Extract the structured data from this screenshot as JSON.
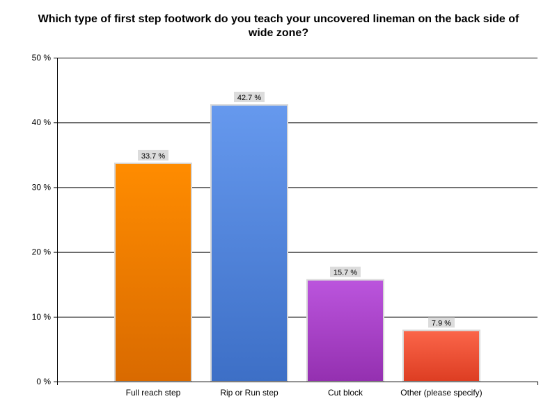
{
  "chart_data": {
    "type": "bar",
    "title": "Which type of first step footwork do you teach your uncovered lineman on the back side of wide zone?",
    "xlabel": "",
    "ylabel": "",
    "ylim": [
      0,
      50
    ],
    "y_ticks": [
      0,
      10,
      20,
      30,
      40,
      50
    ],
    "y_tick_labels": [
      "0 %",
      "10 %",
      "20 %",
      "30 %",
      "40 %",
      "50 %"
    ],
    "grid": true,
    "categories": [
      "Full reach step",
      "Rip or Run step",
      "Cut block",
      "Other (please specify)"
    ],
    "values": [
      33.7,
      42.7,
      15.7,
      7.9
    ],
    "data_labels": [
      "33.7 %",
      "42.7 %",
      "15.7 %",
      "7.9 %"
    ],
    "bar_colors": [
      {
        "top": "#ff8c00",
        "bottom": "#d96a00"
      },
      {
        "top": "#6699ee",
        "bottom": "#3d6fc6"
      },
      {
        "top": "#bb55dd",
        "bottom": "#9430b0"
      },
      {
        "top": "#fb664a",
        "bottom": "#dd3d22"
      }
    ],
    "label_box_color": "#dcdcdc"
  }
}
